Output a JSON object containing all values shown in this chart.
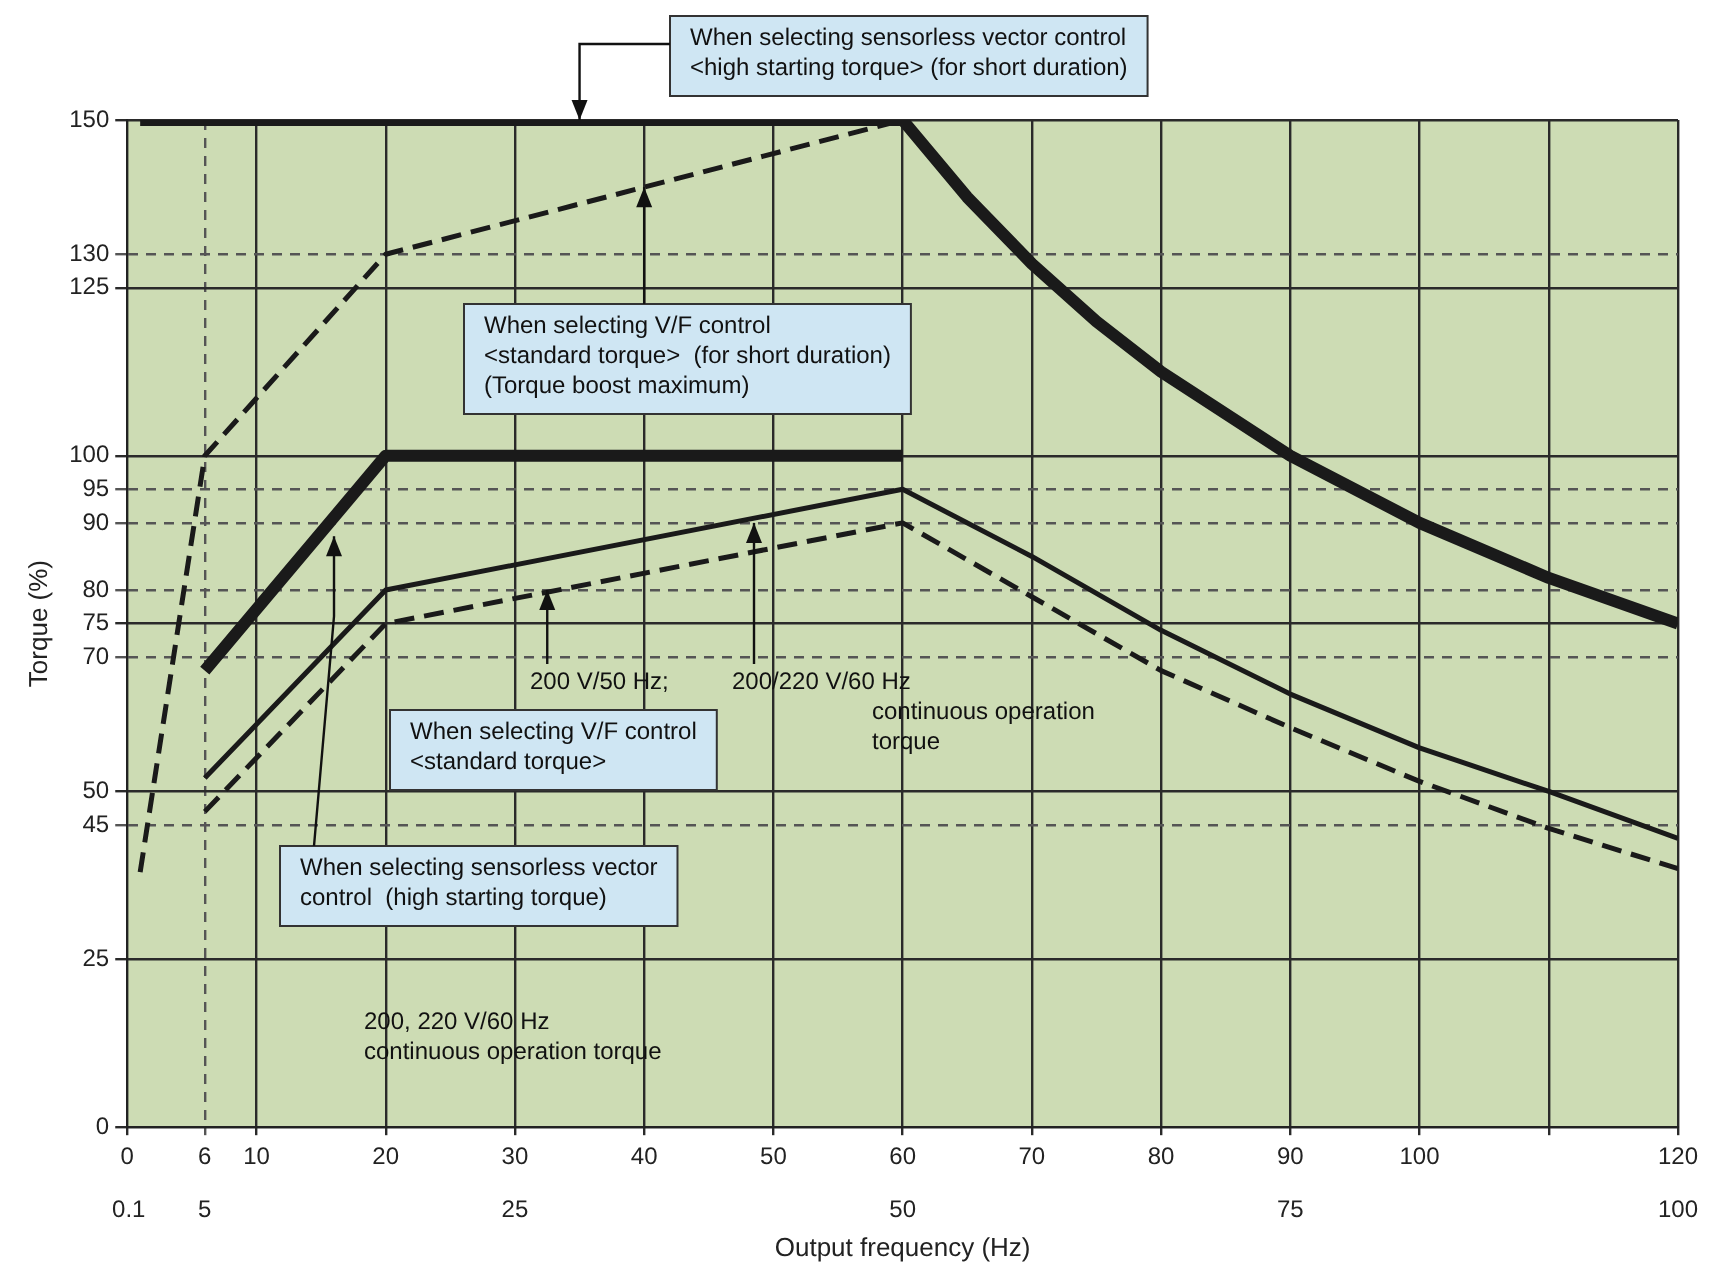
{
  "chart_data": {
    "type": "line",
    "xlabel": "Output frequency (Hz)",
    "ylabel": "Torque (%)",
    "xlim": [
      0,
      120
    ],
    "xticks": [
      0,
      6,
      10,
      20,
      30,
      40,
      50,
      60,
      70,
      80,
      90,
      100,
      {
        "value": 110,
        "label": null
      },
      120
    ],
    "x2lim": [
      0,
      100
    ],
    "x2ticks": [
      0.1,
      5,
      25,
      50,
      75,
      100
    ],
    "ylim": [
      0,
      150
    ],
    "yticks": [
      0,
      25,
      45,
      50,
      70,
      75,
      80,
      90,
      95,
      100,
      125,
      130,
      150
    ],
    "grid": true,
    "marker": "none",
    "series": [
      {
        "color": "#1a1a1a",
        "line_style": "solid",
        "x": [
          1,
          60,
          65,
          70,
          75,
          80,
          90,
          100,
          110,
          120
        ],
        "values": [
          150,
          150,
          138.5,
          128.6,
          120,
          112.5,
          100,
          90,
          81.8,
          75
        ]
      },
      {
        "color": "#1a1a1a",
        "line_style": "dashed",
        "x": [
          1,
          6,
          20,
          60
        ],
        "values": [
          38,
          100,
          130,
          150
        ]
      },
      {
        "color": "#1a1a1a",
        "line_style": "solid",
        "x": [
          6,
          20,
          60
        ],
        "values": [
          68,
          100,
          100
        ]
      },
      {
        "color": "#1a1a1a",
        "line_style": "solid",
        "x": [
          6,
          20,
          60,
          70,
          80,
          90,
          100,
          110,
          120
        ],
        "values": [
          52,
          80,
          95,
          85,
          74,
          64.5,
          56.5,
          50,
          43
        ]
      },
      {
        "color": "#1a1a1a",
        "line_style": "dashed",
        "x": [
          6,
          20,
          60,
          70,
          80,
          90,
          100,
          110,
          120
        ],
        "values": [
          47,
          75,
          90,
          79,
          68,
          59.5,
          51.5,
          44.5,
          38.5
        ]
      }
    ],
    "annotations": [
      {
        "text": "When selecting sensorless vector control\n<high starting torque> (for short duration)",
        "x": 35,
        "y": 150
      },
      {
        "text": "When selecting V/F control\n<standard torque>  (for short duration)\n(Torque boost maximum)",
        "x": 40,
        "y": 140
      },
      "When selecting V/F control\n<standard torque>",
      {
        "text": "When selecting sensorless vector\ncontrol  (high starting torque)",
        "x": 16,
        "y": 88
      },
      {
        "text": "200 V/50 Hz;",
        "x": 32.5,
        "y": 80
      },
      {
        "text": "200/220 V/60 Hz\ncontinuous operation\ntorque",
        "x": 48.5,
        "y": 90
      },
      "200, 220 V/60 Hz\ncontinuous operation torque"
    ]
  }
}
